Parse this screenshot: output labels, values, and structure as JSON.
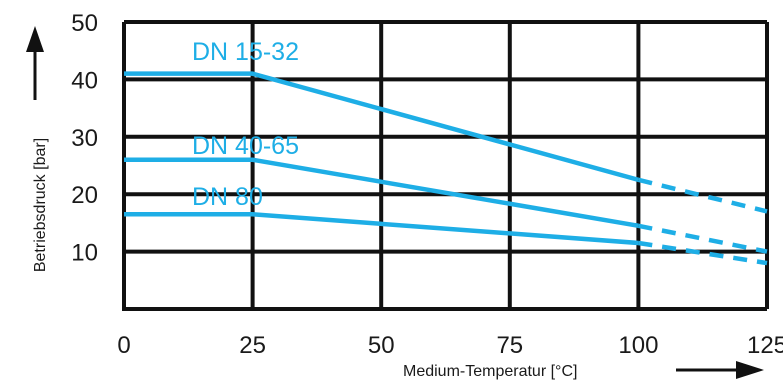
{
  "chart_data": {
    "type": "line",
    "title": "",
    "xlabel": "Medium-Temperatur [°C]",
    "ylabel": "Betriebsdruck [bar]",
    "xlim": [
      0,
      125
    ],
    "ylim": [
      0,
      50
    ],
    "x_ticks": [
      0,
      25,
      50,
      75,
      100,
      125
    ],
    "y_ticks": [
      10,
      20,
      30,
      40,
      50
    ],
    "grid": true,
    "legend": "none",
    "series_color": "#1eaee6",
    "series": [
      {
        "name": "DN 15-32",
        "solid": {
          "x": [
            0,
            25,
            100
          ],
          "y": [
            41,
            41,
            22.5
          ]
        },
        "dashed": {
          "x": [
            100,
            125
          ],
          "y": [
            22.5,
            17
          ]
        }
      },
      {
        "name": "DN 40-65",
        "solid": {
          "x": [
            0,
            25,
            100
          ],
          "y": [
            26,
            26,
            14.5
          ]
        },
        "dashed": {
          "x": [
            100,
            125
          ],
          "y": [
            14.5,
            10
          ]
        }
      },
      {
        "name": "DN 80",
        "solid": {
          "x": [
            0,
            25,
            100
          ],
          "y": [
            16.5,
            16.5,
            11.5
          ]
        },
        "dashed": {
          "x": [
            100,
            125
          ],
          "y": [
            11.5,
            8
          ]
        }
      }
    ]
  }
}
